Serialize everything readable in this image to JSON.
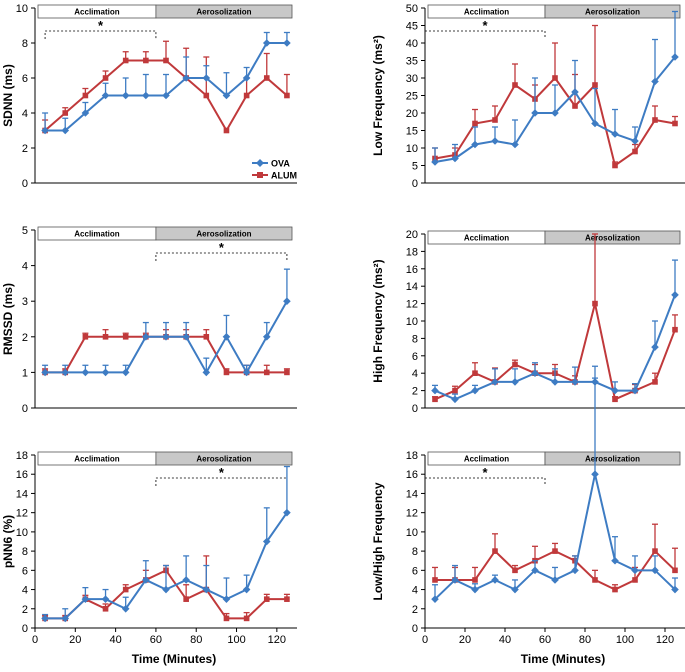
{
  "chart_data": [
    {
      "type": "line",
      "ylabel": "SDNN (ms)",
      "xlabel": "",
      "ylim": [
        0,
        10
      ],
      "yticks": [
        0,
        2,
        4,
        6,
        8,
        10
      ],
      "xlim": [
        0,
        130
      ],
      "xticks": [],
      "x": [
        5,
        15,
        25,
        35,
        45,
        55,
        65,
        75,
        85,
        95,
        105,
        115,
        125
      ],
      "phases": {
        "acclimation": "Acclimation",
        "aerosolization": "Aerosolization"
      },
      "significance": {
        "label": "*",
        "span": [
          5,
          60
        ]
      },
      "legend": {
        "position": "right",
        "entries": [
          "OVA",
          "ALUM"
        ]
      },
      "series": [
        {
          "name": "OVA",
          "color": "#3e7cc3",
          "marker": "diamond",
          "values": [
            3,
            3,
            4,
            5,
            5,
            5,
            5,
            6,
            6,
            5,
            6,
            8,
            8
          ],
          "errors": [
            1,
            0.7,
            0.6,
            0.7,
            1,
            1.2,
            1.2,
            1.2,
            0.7,
            1.3,
            0.6,
            0.6,
            0.6
          ]
        },
        {
          "name": "ALUM",
          "color": "#c0393b",
          "marker": "square",
          "values": [
            3,
            4,
            5,
            6,
            7,
            7,
            7,
            6,
            5,
            3,
            5,
            6,
            5
          ],
          "errors": [
            0.6,
            0.3,
            0.4,
            0.4,
            0.5,
            0.5,
            1.1,
            1.7,
            2.2,
            0,
            1,
            1.4,
            1.2
          ]
        }
      ]
    },
    {
      "type": "line",
      "ylabel": "Low Frequency (ms²)",
      "xlabel": "",
      "ylim": [
        0,
        50
      ],
      "yticks": [
        0,
        5,
        10,
        15,
        20,
        25,
        30,
        35,
        40,
        45,
        50
      ],
      "xlim": [
        0,
        130
      ],
      "xticks": [],
      "x": [
        5,
        15,
        25,
        35,
        45,
        55,
        65,
        75,
        85,
        95,
        105,
        115,
        125
      ],
      "phases": {
        "acclimation": "Acclimation",
        "aerosolization": "Aerosolization"
      },
      "significance": {
        "label": "*",
        "span": [
          0,
          60
        ]
      },
      "series": [
        {
          "name": "OVA",
          "color": "#3e7cc3",
          "marker": "diamond",
          "values": [
            6,
            7,
            11,
            12,
            11,
            20,
            20,
            26,
            17,
            14,
            12,
            29,
            36
          ],
          "errors": [
            4,
            4,
            5,
            4,
            7,
            10,
            8,
            9,
            10,
            7,
            4,
            12,
            13
          ]
        },
        {
          "name": "ALUM",
          "color": "#c0393b",
          "marker": "square",
          "values": [
            7,
            8,
            17,
            18,
            28,
            24,
            30,
            22,
            28,
            5,
            9,
            18,
            17
          ],
          "errors": [
            3,
            2,
            4,
            4,
            6,
            4,
            10,
            9,
            17,
            1,
            2,
            4,
            2
          ]
        }
      ]
    },
    {
      "type": "line",
      "ylabel": "RMSSD (ms)",
      "xlabel": "",
      "ylim": [
        0,
        5
      ],
      "yticks": [
        0,
        1,
        2,
        3,
        4,
        5
      ],
      "xlim": [
        0,
        130
      ],
      "xticks": [],
      "x": [
        5,
        15,
        25,
        35,
        45,
        55,
        65,
        75,
        85,
        95,
        105,
        115,
        125
      ],
      "phases": {
        "acclimation": "Acclimation",
        "aerosolization": "Aerosolization"
      },
      "significance": {
        "label": "*",
        "span": [
          60,
          125
        ]
      },
      "series": [
        {
          "name": "OVA",
          "color": "#3e7cc3",
          "marker": "diamond",
          "values": [
            1,
            1,
            1,
            1,
            1,
            2,
            2,
            2,
            1,
            2,
            1,
            2,
            3
          ],
          "errors": [
            0.2,
            0.2,
            0.2,
            0.2,
            0.2,
            0.4,
            0.4,
            0.4,
            0.4,
            0.6,
            0.2,
            0.4,
            0.9
          ]
        },
        {
          "name": "ALUM",
          "color": "#c0393b",
          "marker": "square",
          "values": [
            1,
            1,
            2,
            2,
            2,
            2,
            2,
            2,
            2,
            1,
            1,
            1,
            1
          ],
          "errors": [
            0.1,
            0.1,
            0.1,
            0.2,
            0.1,
            0.1,
            0.2,
            0.2,
            0.2,
            0.1,
            0.2,
            0.2,
            0.1
          ]
        }
      ]
    },
    {
      "type": "line",
      "ylabel": "High Frequency (ms²)",
      "xlabel": "",
      "ylim": [
        0,
        20
      ],
      "yticks": [
        0,
        2,
        4,
        6,
        8,
        10,
        12,
        14,
        16,
        18,
        20
      ],
      "xlim": [
        0,
        130
      ],
      "xticks": [],
      "x": [
        5,
        15,
        25,
        35,
        45,
        55,
        65,
        75,
        85,
        95,
        105,
        115,
        125
      ],
      "phases": {
        "acclimation": "Acclimation",
        "aerosolization": "Aerosolization"
      },
      "series": [
        {
          "name": "OVA",
          "color": "#3e7cc3",
          "marker": "diamond",
          "values": [
            2,
            1,
            2,
            3,
            3,
            4,
            3,
            3,
            3,
            2,
            2,
            7,
            13
          ],
          "errors": [
            0.6,
            0.6,
            0.6,
            1.5,
            1.5,
            1.2,
            1.5,
            1.7,
            1.8,
            1,
            0.8,
            3,
            4
          ]
        },
        {
          "name": "ALUM",
          "color": "#c0393b",
          "marker": "square",
          "values": [
            1,
            2,
            4,
            3,
            5,
            4,
            4,
            3,
            12,
            1,
            2,
            3,
            9
          ],
          "errors": [
            0.3,
            0.5,
            1.2,
            1.6,
            0.5,
            1,
            1,
            0.7,
            8,
            0.3,
            0.7,
            1,
            1.7
          ]
        }
      ]
    },
    {
      "type": "line",
      "ylabel": "pNN6 (%)",
      "xlabel": "Time (Minutes)",
      "ylim": [
        0,
        18
      ],
      "yticks": [
        0,
        2,
        4,
        6,
        8,
        10,
        12,
        14,
        16,
        18
      ],
      "xlim": [
        0,
        130
      ],
      "xticks": [
        0,
        20,
        40,
        60,
        80,
        100,
        120
      ],
      "x": [
        5,
        15,
        25,
        35,
        45,
        55,
        65,
        75,
        85,
        95,
        105,
        115,
        125
      ],
      "phases": {
        "acclimation": "Acclimation",
        "aerosolization": "Aerosolization"
      },
      "significance": {
        "label": "*",
        "span": [
          60,
          125
        ]
      },
      "series": [
        {
          "name": "OVA",
          "color": "#3e7cc3",
          "marker": "diamond",
          "values": [
            1,
            1,
            3,
            3,
            2,
            5,
            4,
            5,
            4,
            3,
            4,
            9,
            12
          ],
          "errors": [
            0.4,
            1,
            1.2,
            1,
            1.2,
            2,
            2.5,
            2.5,
            2.5,
            2.2,
            1.5,
            3.5,
            4.8
          ]
        },
        {
          "name": "ALUM",
          "color": "#c0393b",
          "marker": "square",
          "values": [
            1,
            1,
            3,
            2,
            4,
            5,
            6,
            3,
            4,
            1,
            1,
            3,
            3
          ],
          "errors": [
            0.3,
            0.3,
            0.4,
            0.5,
            0.5,
            1,
            0.5,
            1.5,
            3.5,
            0.5,
            0.6,
            0.5,
            0.5
          ]
        }
      ]
    },
    {
      "type": "line",
      "ylabel": "Low/High Frequency",
      "xlabel": "Time (Minutes)",
      "ylim": [
        0,
        18
      ],
      "yticks": [
        0,
        2,
        4,
        6,
        8,
        10,
        12,
        14,
        16,
        18
      ],
      "xlim": [
        0,
        130
      ],
      "xticks": [
        0,
        20,
        40,
        60,
        80,
        100,
        120
      ],
      "x": [
        5,
        15,
        25,
        35,
        45,
        55,
        65,
        75,
        85,
        95,
        105,
        115,
        125
      ],
      "phases": {
        "acclimation": "Acclimation",
        "aerosolization": "Aerosolization"
      },
      "significance": {
        "label": "*",
        "span": [
          0,
          60
        ]
      },
      "series": [
        {
          "name": "OVA",
          "color": "#3e7cc3",
          "marker": "diamond",
          "values": [
            3,
            5,
            4,
            5,
            4,
            6,
            5,
            6,
            16,
            7,
            6,
            6,
            4
          ],
          "errors": [
            1.5,
            1.5,
            0.6,
            0.5,
            1,
            1,
            1.3,
            1.5,
            10,
            2.5,
            1.5,
            1.5,
            1.2
          ]
        },
        {
          "name": "ALUM",
          "color": "#c0393b",
          "marker": "square",
          "values": [
            5,
            5,
            5,
            8,
            6,
            7,
            8,
            7,
            5,
            4,
            5,
            8,
            6
          ],
          "errors": [
            1.3,
            1.3,
            1.3,
            1.8,
            0.5,
            1.5,
            0.8,
            0.5,
            1,
            0.5,
            1.3,
            2.8,
            2.3
          ]
        }
      ]
    }
  ]
}
